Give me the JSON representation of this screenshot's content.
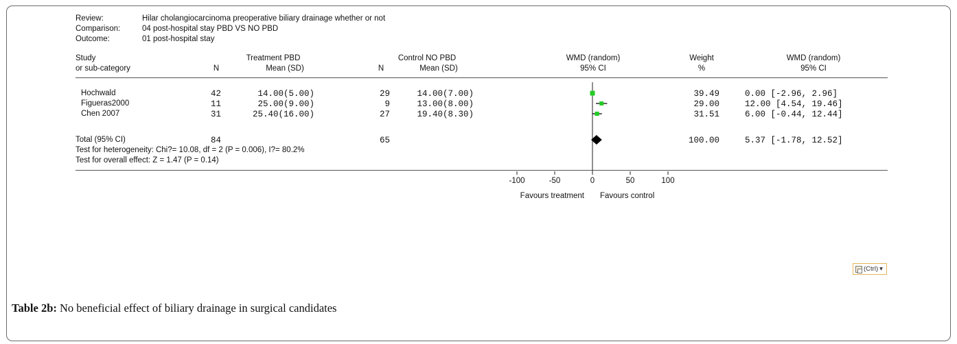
{
  "meta": {
    "review_label": "Review:",
    "review": "Hilar cholangiocarcinoma preoperative biliary drainage whether or not",
    "comparison_label": "Comparison:",
    "comparison": "04 post-hospital stay  PBD VS NO PBD",
    "outcome_label": "Outcome:",
    "outcome": "01 post-hospital stay"
  },
  "headers": {
    "study_1": "Study",
    "study_2": "or sub-category",
    "treatment_group": "Treatment PBD",
    "treatment_n": "N",
    "treatment_mean": "Mean (SD)",
    "control_group": "Control NO PBD",
    "control_n": "N",
    "control_mean": "Mean (SD)",
    "wmd_1": "WMD (random)",
    "wmd_2": "95% CI",
    "weight_1": "Weight",
    "weight_2": "%",
    "wmd_right_1": "WMD (random)",
    "wmd_right_2": "95% CI"
  },
  "rows": [
    {
      "study": "Hochwald",
      "n1": "42",
      "ms1": "14.00(5.00)",
      "n2": "29",
      "ms2": "14.00(7.00)",
      "weight": "39.49",
      "ci_text": "0.00 [-2.96, 2.96]"
    },
    {
      "study": "Figueras2000",
      "n1": "11",
      "ms1": "25.00(9.00)",
      "n2": "9",
      "ms2": "13.00(8.00)",
      "weight": "29.00",
      "ci_text": "12.00 [4.54, 19.46]"
    },
    {
      "study": "Chen 2007",
      "n1": "31",
      "ms1": "25.40(16.00)",
      "n2": "27",
      "ms2": "19.40(8.30)",
      "weight": "31.51",
      "ci_text": "6.00 [-0.44, 12.44]"
    }
  ],
  "total": {
    "label": "Total (95% CI)",
    "n1": "84",
    "n2": "65",
    "weight": "100.00",
    "ci_text": "5.37 [-1.78, 12.52]",
    "heterogeneity": "Test for heterogeneity: Chi?= 10.08, df = 2 (P = 0.006), I?= 80.2%",
    "overall": "Test for overall effect: Z = 1.47 (P = 0.14)"
  },
  "axis": {
    "ticks": [
      "-100",
      "-50",
      "0",
      "50",
      "100"
    ],
    "favours_left": "Favours treatment",
    "favours_right": "Favours control"
  },
  "ctrl_button": "(Ctrl)",
  "caption": {
    "label": "Table 2b:",
    "text": " No beneficial effect of biliary drainage in surgical candidates"
  },
  "colors": {
    "study_marker": "#22cc22",
    "diamond": "#000000"
  },
  "chart_data": {
    "type": "forest",
    "xlim": [
      -100,
      100
    ],
    "xticks": [
      -100,
      -50,
      0,
      50,
      100
    ],
    "studies": [
      {
        "name": "Hochwald",
        "estimate": 0.0,
        "ci": [
          -2.96,
          2.96
        ],
        "weight": 39.49
      },
      {
        "name": "Figueras2000",
        "estimate": 12.0,
        "ci": [
          4.54,
          19.46
        ],
        "weight": 29.0
      },
      {
        "name": "Chen 2007",
        "estimate": 6.0,
        "ci": [
          -0.44,
          12.44
        ],
        "weight": 31.51
      }
    ],
    "pooled": {
      "estimate": 5.37,
      "ci": [
        -1.78,
        12.52
      ]
    }
  }
}
